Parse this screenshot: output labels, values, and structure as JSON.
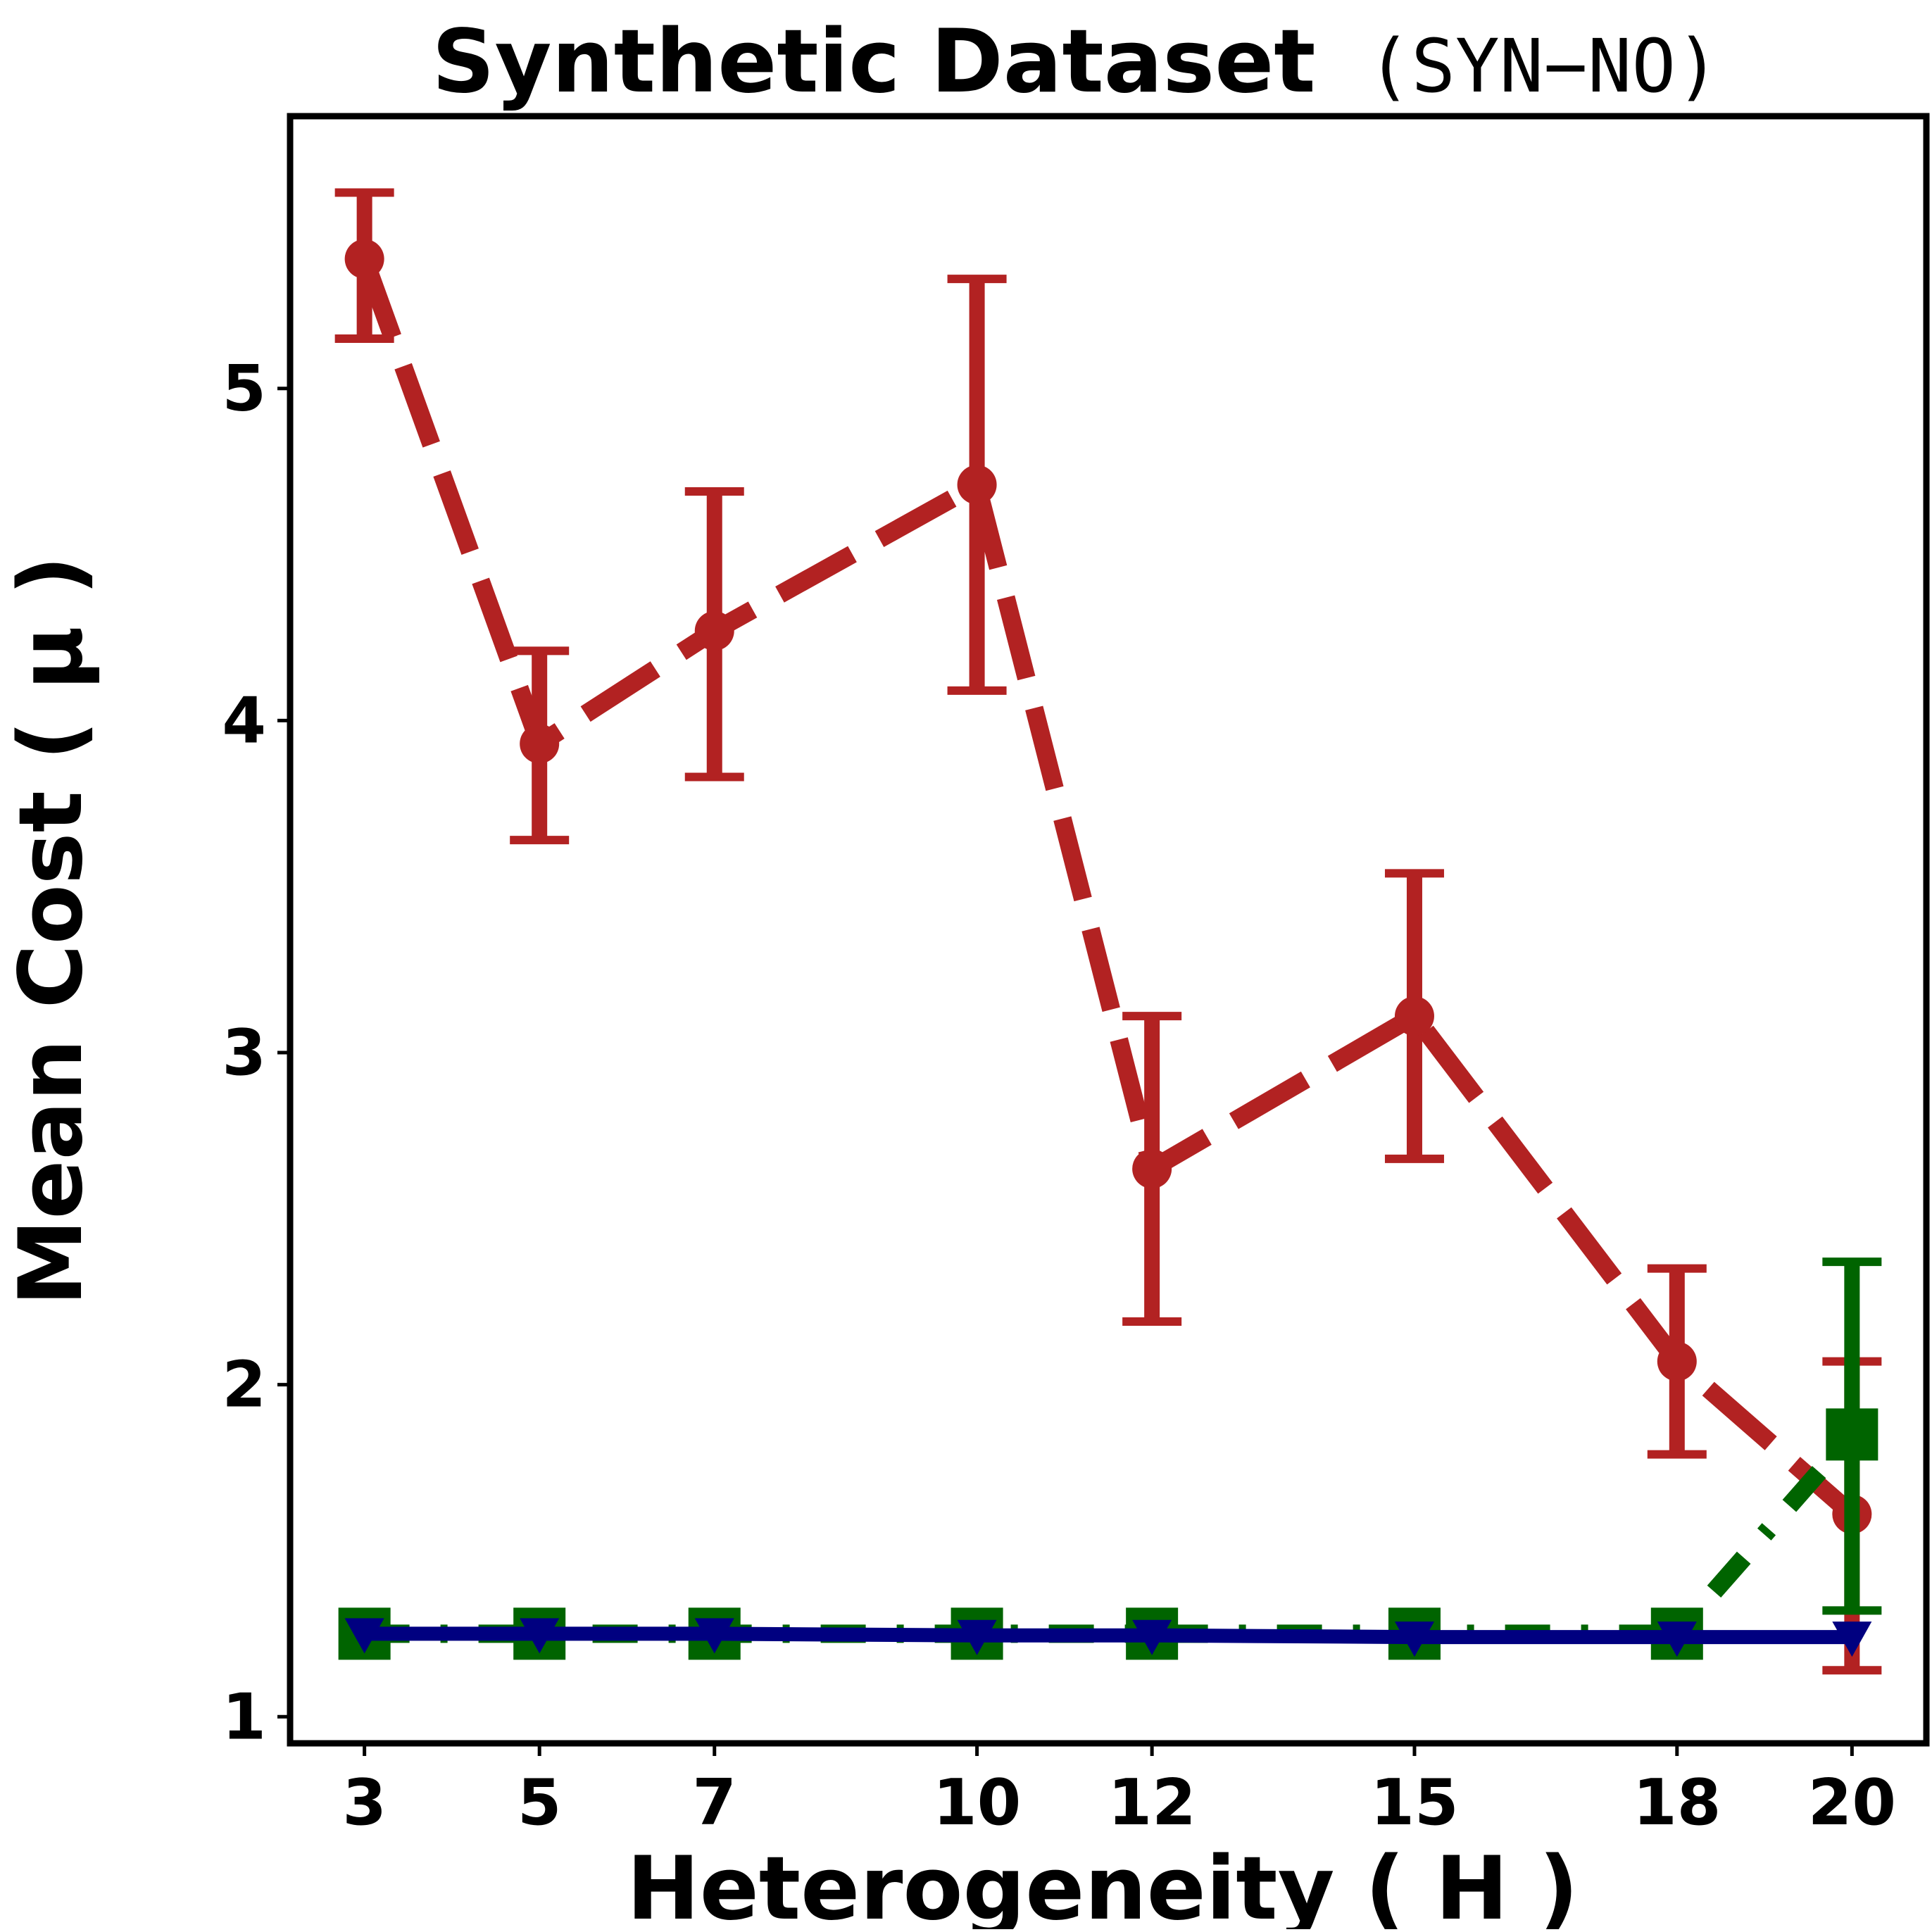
{
  "chart_data": {
    "type": "line",
    "title": "Synthetic Dataset",
    "title_suffix": "(SYN−NO)",
    "xlabel": "Heterogeneity ( H )",
    "ylabel": "Mean Cost ( μ )",
    "x": [
      3,
      5,
      7,
      10,
      12,
      15,
      18,
      20
    ],
    "x_tick_labels": [
      "3",
      "5",
      "7",
      "10",
      "12",
      "15",
      "18",
      "20"
    ],
    "y_ticks": [
      1,
      2,
      3,
      4,
      5
    ],
    "y_tick_labels": [
      "1",
      "2",
      "3",
      "4",
      "5"
    ],
    "xlim": [
      2.15,
      20.85
    ],
    "ylim": [
      0.92,
      5.82
    ],
    "grid": false,
    "legend": "none",
    "series": [
      {
        "name": "red-dashed-circles",
        "color": "#b22222",
        "line_style": "dashed",
        "marker": "circle",
        "values": [
          5.39,
          3.93,
          4.27,
          4.71,
          2.65,
          3.11,
          2.07,
          1.61
        ],
        "err_low": [
          5.15,
          3.64,
          3.83,
          4.09,
          2.19,
          2.68,
          1.79,
          1.14
        ],
        "err_high": [
          5.59,
          4.21,
          4.69,
          5.33,
          3.11,
          3.54,
          2.35,
          2.07
        ]
      },
      {
        "name": "green-dash-dot-squares",
        "color": "#006400",
        "line_style": "dashdot",
        "marker": "square",
        "values": [
          1.25,
          1.25,
          1.25,
          1.25,
          1.25,
          1.25,
          1.25,
          1.85
        ],
        "err_low": [
          1.25,
          1.25,
          1.25,
          1.25,
          1.25,
          1.25,
          1.25,
          1.32
        ],
        "err_high": [
          1.25,
          1.25,
          1.25,
          1.25,
          1.25,
          1.25,
          1.25,
          2.37
        ]
      },
      {
        "name": "navy-solid-triangles",
        "color": "#000080",
        "line_style": "solid",
        "marker": "triangle-down",
        "values": [
          1.25,
          1.25,
          1.25,
          1.245,
          1.245,
          1.24,
          1.24,
          1.24
        ],
        "err_low": [
          1.25,
          1.25,
          1.25,
          1.245,
          1.245,
          1.24,
          1.24,
          1.24
        ],
        "err_high": [
          1.25,
          1.25,
          1.25,
          1.245,
          1.245,
          1.24,
          1.24,
          1.24
        ]
      }
    ]
  }
}
